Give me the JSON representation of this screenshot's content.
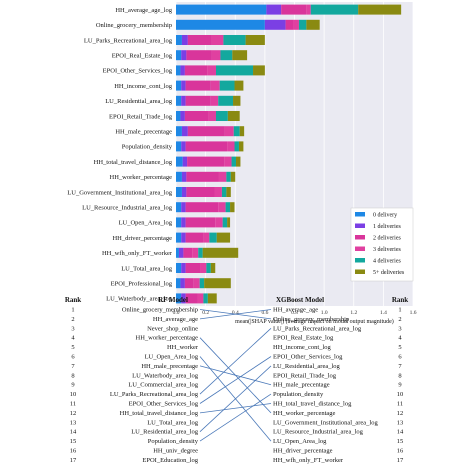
{
  "chart_data": [
    {
      "type": "bar",
      "stacked": true,
      "orientation": "horizontal",
      "xlabel": "mean(|SHAP value|) (average impact on model output magnitude)",
      "xlim": [
        0,
        1.6
      ],
      "xticks": [
        "0.0",
        "0.2",
        "0.4",
        "0.6",
        "0.8",
        "1.0",
        "1.2",
        "1.4",
        "1.6"
      ],
      "legend_position": "bottom-right",
      "categories": [
        "HH_average_age_log",
        "Online_grocery_membership",
        "LU_Parks_Recreational_area_log",
        "EPOI_Real_Estate_log",
        "EPOI_Other_Services_log",
        "HH_income_cont_log",
        "LU_Residential_area_log",
        "EPOI_Retail_Trade_log",
        "HH_male_precentage",
        "Population_density",
        "HH_total_travel_distance_log",
        "HH_worker_percentage",
        "LU_Government_Institutional_area_log",
        "LU_Resource_Industrial_area_log",
        "LU_Open_Area_log",
        "HH_driver_percentage",
        "HH_wfh_only_FT_worker",
        "LU_Total_area_log",
        "EPOI_Professional_log",
        "LU_Waterbody_area_log"
      ],
      "series": [
        {
          "name": "0 delivery",
          "color": "#1e88e5",
          "values": [
            0.61,
            0.6,
            0.04,
            0.035,
            0.03,
            0.035,
            0.035,
            0.03,
            0.04,
            0.035,
            0.045,
            0.04,
            0.04,
            0.035,
            0.035,
            0.035,
            0.02,
            0.035,
            0.03,
            0.035
          ]
        },
        {
          "name": "1 deliveries",
          "color": "#7b3fe4",
          "values": [
            0.1,
            0.14,
            0.04,
            0.035,
            0.03,
            0.03,
            0.03,
            0.03,
            0.04,
            0.03,
            0.03,
            0.03,
            0.03,
            0.03,
            0.03,
            0.03,
            0.03,
            0.03,
            0.03,
            0.03
          ]
        },
        {
          "name": "2 deliveries",
          "color": "#d9359b",
          "values": [
            0.17,
            0.05,
            0.16,
            0.17,
            0.15,
            0.17,
            0.17,
            0.16,
            0.25,
            0.28,
            0.25,
            0.22,
            0.19,
            0.22,
            0.2,
            0.12,
            0.06,
            0.1,
            0.06,
            0.08
          ]
        },
        {
          "name": "3 deliveries",
          "color": "#e040a0",
          "values": [
            0.03,
            0.04,
            0.08,
            0.06,
            0.06,
            0.06,
            0.05,
            0.05,
            0.06,
            0.05,
            0.05,
            0.05,
            0.05,
            0.05,
            0.05,
            0.04,
            0.04,
            0.04,
            0.04,
            0.04
          ]
        },
        {
          "name": "4 deliveries",
          "color": "#13a89e",
          "values": [
            0.32,
            0.05,
            0.15,
            0.08,
            0.25,
            0.1,
            0.1,
            0.08,
            0.04,
            0.03,
            0.03,
            0.03,
            0.03,
            0.03,
            0.03,
            0.05,
            0.03,
            0.03,
            0.03,
            0.03
          ]
        },
        {
          "name": "5+ deliveries",
          "color": "#8a8a12",
          "values": [
            0.29,
            0.09,
            0.13,
            0.1,
            0.08,
            0.06,
            0.05,
            0.08,
            0.03,
            0.03,
            0.03,
            0.03,
            0.03,
            0.03,
            0.02,
            0.09,
            0.24,
            0.03,
            0.18,
            0.06
          ]
        }
      ]
    },
    {
      "type": "table",
      "headers": {
        "rank_left": "Rank",
        "rf": "RF Model",
        "xgb": "XGBoost Model",
        "rank_right": "Rank"
      },
      "ranks": [
        "1",
        "2",
        "3",
        "4",
        "5",
        "6",
        "7",
        "8",
        "9",
        "10",
        "11",
        "12",
        "13",
        "14",
        "15",
        "16",
        "17"
      ],
      "rf_features": [
        "Online_grocery_membership",
        "HH_average_age",
        "Never_shop_online",
        "HH_worker_percentage",
        "HH_worker",
        "LU_Open_Area_log",
        "HH_male_precentage",
        "LU_Waterbody_area_log",
        "LU_Commercial_area_log",
        "LU_Parks_Recreational_area_log",
        "EPOI_Other_Services_log",
        "HH_total_travel_distance_log",
        "LU_Total_area_log",
        "LU_Residential_area_log",
        "Population_density",
        "HH_univ_degree",
        "EPOI_Education_log"
      ],
      "xgb_features": [
        "HH_average_age",
        "Online_grocery_membership",
        "LU_Parks_Recreational_area_log",
        "EPOI_Real_Estate_log",
        "HH_income_cont_log",
        "EPOI_Other_Services_log",
        "LU_Residential_area_log",
        "EPOI_Retail_Trade_log",
        "HH_male_precentage",
        "Population_density",
        "HH_total_travel_distance_log",
        "HH_worker_percentage",
        "LU_Government_Institutional_area_log",
        "LU_Resource_Industrial_area_log",
        "LU_Open_Area_log",
        "HH_driver_percentage",
        "HH_wfh_only_FT_worker"
      ],
      "links": [
        [
          0,
          1
        ],
        [
          1,
          0
        ],
        [
          3,
          11
        ],
        [
          5,
          14
        ],
        [
          6,
          8
        ],
        [
          9,
          2
        ],
        [
          10,
          5
        ],
        [
          11,
          10
        ],
        [
          13,
          6
        ],
        [
          14,
          9
        ]
      ]
    }
  ]
}
